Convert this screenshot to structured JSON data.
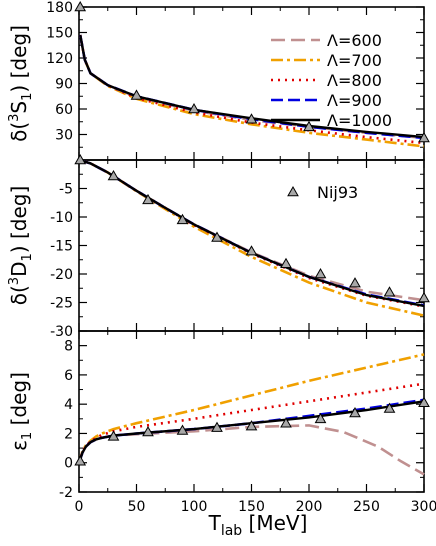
{
  "chart_data": {
    "type": "line",
    "shared_x": {
      "label_main": "T",
      "label_sub": "lab",
      "label_unit": " [MeV]",
      "ticks": [
        0,
        50,
        100,
        150,
        200,
        250,
        300
      ],
      "tick_labels": [
        "0",
        "50",
        "100",
        "150",
        "200",
        "250",
        "300"
      ],
      "xlim": [
        0,
        300
      ]
    },
    "legend": {
      "placement": "top-right",
      "entries": [
        {
          "label": "Λ=600",
          "color": "#c09090",
          "dash": "14,6"
        },
        {
          "label": "Λ=700",
          "color": "#f0a000",
          "dash": "12,4,3,4"
        },
        {
          "label": "Λ=800",
          "color": "#e00000",
          "dash": "2,5"
        },
        {
          "label": "Λ=900",
          "color": "#0000e0",
          "dash": "12,5"
        },
        {
          "label": "Λ=1000",
          "color": "#000000",
          "dash": ""
        }
      ],
      "marker_label": "Nij93"
    },
    "panels": [
      {
        "id": "3S1",
        "ylabel_prefix": "δ(",
        "ylabel_sup": "3",
        "ylabel_mid": "S",
        "ylabel_sub": "1",
        "ylabel_suffix": ") [deg]",
        "ylim": [
          0,
          180
        ],
        "yticks": [
          30,
          60,
          90,
          120,
          150,
          180
        ],
        "ytick_labels": [
          "30",
          "60",
          "90",
          "120",
          "150",
          "180"
        ],
        "reference": {
          "name": "Nij93",
          "x": [
            1,
            50,
            100,
            150,
            200,
            300
          ],
          "y": [
            180,
            76,
            60,
            48,
            39,
            26
          ]
        },
        "series": [
          {
            "name": "Λ=600",
            "x": [
              1,
              5,
              10,
              25,
              50,
              100,
              150,
              200,
              250,
              300
            ],
            "y": [
              147,
              118,
              102,
              88,
              74,
              58,
              47,
              39,
              32,
              26
            ]
          },
          {
            "name": "Λ=700",
            "x": [
              1,
              5,
              10,
              25,
              50,
              100,
              150,
              200,
              250,
              300
            ],
            "y": [
              147,
              118,
              102,
              87,
              72,
              54,
              42,
              32,
              24,
              16
            ]
          },
          {
            "name": "Λ=800",
            "x": [
              1,
              5,
              10,
              25,
              50,
              100,
              150,
              200,
              250,
              300
            ],
            "y": [
              147,
              118,
              102,
              88,
              73,
              56,
              44,
              35,
              27,
              20
            ]
          },
          {
            "name": "Λ=900",
            "x": [
              1,
              5,
              10,
              25,
              50,
              100,
              150,
              200,
              250,
              300
            ],
            "y": [
              147,
              118,
              102,
              88,
              75,
              59,
              48,
              39,
              32,
              26
            ]
          },
          {
            "name": "Λ=1000",
            "x": [
              1,
              5,
              10,
              25,
              50,
              100,
              150,
              200,
              250,
              300
            ],
            "y": [
              147,
              118,
              102,
              88,
              75,
              59,
              49,
              40,
              33,
              27
            ]
          }
        ]
      },
      {
        "id": "3D1",
        "ylabel_prefix": "δ(",
        "ylabel_sup": "3",
        "ylabel_mid": "D",
        "ylabel_sub": "1",
        "ylabel_suffix": ") [deg]",
        "ylim": [
          -30,
          0
        ],
        "yticks": [
          -5,
          -10,
          -15,
          -20,
          -25,
          -30
        ],
        "ytick_labels": [
          "-5",
          "-10",
          "-15",
          "-20",
          "-25",
          "-30"
        ],
        "reference": {
          "name": "Nij93",
          "x": [
            1,
            30,
            60,
            90,
            120,
            150,
            180,
            210,
            240,
            270,
            300
          ],
          "y": [
            0,
            -2.8,
            -7,
            -10.5,
            -13.6,
            -16,
            -18.2,
            -20,
            -21.6,
            -23.2,
            -24.2
          ]
        },
        "series": [
          {
            "name": "Λ=600",
            "x": [
              0,
              10,
              25,
              50,
              75,
              100,
              150,
              200,
              250,
              300
            ],
            "y": [
              0,
              -0.6,
              -2.2,
              -5.4,
              -8.4,
              -11.3,
              -16.2,
              -20.3,
              -23.1,
              -24.6
            ]
          },
          {
            "name": "Λ=700",
            "x": [
              0,
              10,
              25,
              50,
              75,
              100,
              150,
              200,
              250,
              300
            ],
            "y": [
              0,
              -0.6,
              -2.2,
              -5.5,
              -8.6,
              -11.7,
              -17,
              -21.5,
              -25,
              -27.3
            ]
          },
          {
            "name": "Λ=800",
            "x": [
              0,
              10,
              25,
              50,
              75,
              100,
              150,
              200,
              250,
              300
            ],
            "y": [
              0,
              -0.6,
              -2.2,
              -5.4,
              -8.4,
              -11.4,
              -16.4,
              -20.7,
              -23.8,
              -25.7
            ]
          },
          {
            "name": "Λ=900",
            "x": [
              0,
              10,
              25,
              50,
              75,
              100,
              150,
              200,
              250,
              300
            ],
            "y": [
              0,
              -0.6,
              -2.2,
              -5.4,
              -8.4,
              -11.3,
              -16.3,
              -20.5,
              -23.6,
              -25.5
            ]
          },
          {
            "name": "Λ=1000",
            "x": [
              0,
              10,
              25,
              50,
              75,
              100,
              150,
              200,
              250,
              300
            ],
            "y": [
              0,
              -0.6,
              -2.2,
              -5.4,
              -8.4,
              -11.3,
              -16.3,
              -20.5,
              -23.7,
              -25.6
            ]
          }
        ]
      },
      {
        "id": "eps1",
        "ylabel_prefix": "ε",
        "ylabel_sup": "",
        "ylabel_mid": "",
        "ylabel_sub": "1",
        "ylabel_suffix": " [deg]",
        "ylim": [
          -2,
          9
        ],
        "yticks": [
          -2,
          0,
          2,
          4,
          6,
          8
        ],
        "ytick_labels": [
          "-2",
          "0",
          "2",
          "4",
          "6",
          "8"
        ],
        "reference": {
          "name": "Nij93",
          "x": [
            1,
            30,
            60,
            90,
            120,
            150,
            180,
            210,
            240,
            270,
            300
          ],
          "y": [
            0.1,
            1.8,
            2.1,
            2.2,
            2.4,
            2.5,
            2.7,
            3,
            3.4,
            3.7,
            4.1
          ]
        },
        "series": [
          {
            "name": "Λ=600",
            "x": [
              0,
              3,
              6,
              10,
              15,
              20,
              30,
              50,
              100,
              150,
              200,
              230,
              260,
              280,
              300
            ],
            "y": [
              0,
              0.7,
              1.1,
              1.4,
              1.6,
              1.7,
              1.85,
              1.95,
              2.15,
              2.45,
              2.55,
              2.1,
              1.1,
              0.1,
              -0.8
            ]
          },
          {
            "name": "Λ=700",
            "x": [
              0,
              3,
              6,
              10,
              15,
              20,
              30,
              50,
              100,
              150,
              200,
              250,
              300
            ],
            "y": [
              0,
              0.8,
              1.2,
              1.5,
              1.8,
              2,
              2.3,
              2.7,
              3.6,
              4.6,
              5.6,
              6.5,
              7.4
            ]
          },
          {
            "name": "Λ=800",
            "x": [
              0,
              3,
              6,
              10,
              15,
              20,
              30,
              50,
              100,
              150,
              200,
              250,
              300
            ],
            "y": [
              0,
              0.75,
              1.15,
              1.45,
              1.7,
              1.9,
              2.15,
              2.45,
              3,
              3.6,
              4.2,
              4.8,
              5.4
            ]
          },
          {
            "name": "Λ=900",
            "x": [
              0,
              3,
              6,
              10,
              15,
              20,
              30,
              50,
              100,
              150,
              200,
              250,
              300
            ],
            "y": [
              0,
              0.7,
              1.1,
              1.4,
              1.6,
              1.7,
              1.85,
              2,
              2.3,
              2.7,
              3.2,
              3.7,
              4.3
            ]
          },
          {
            "name": "Λ=1000",
            "x": [
              0,
              3,
              6,
              10,
              15,
              20,
              30,
              50,
              100,
              150,
              200,
              250,
              300
            ],
            "y": [
              0,
              0.7,
              1.1,
              1.4,
              1.6,
              1.7,
              1.85,
              2,
              2.3,
              2.7,
              3.1,
              3.6,
              4.2
            ]
          }
        ]
      }
    ]
  }
}
